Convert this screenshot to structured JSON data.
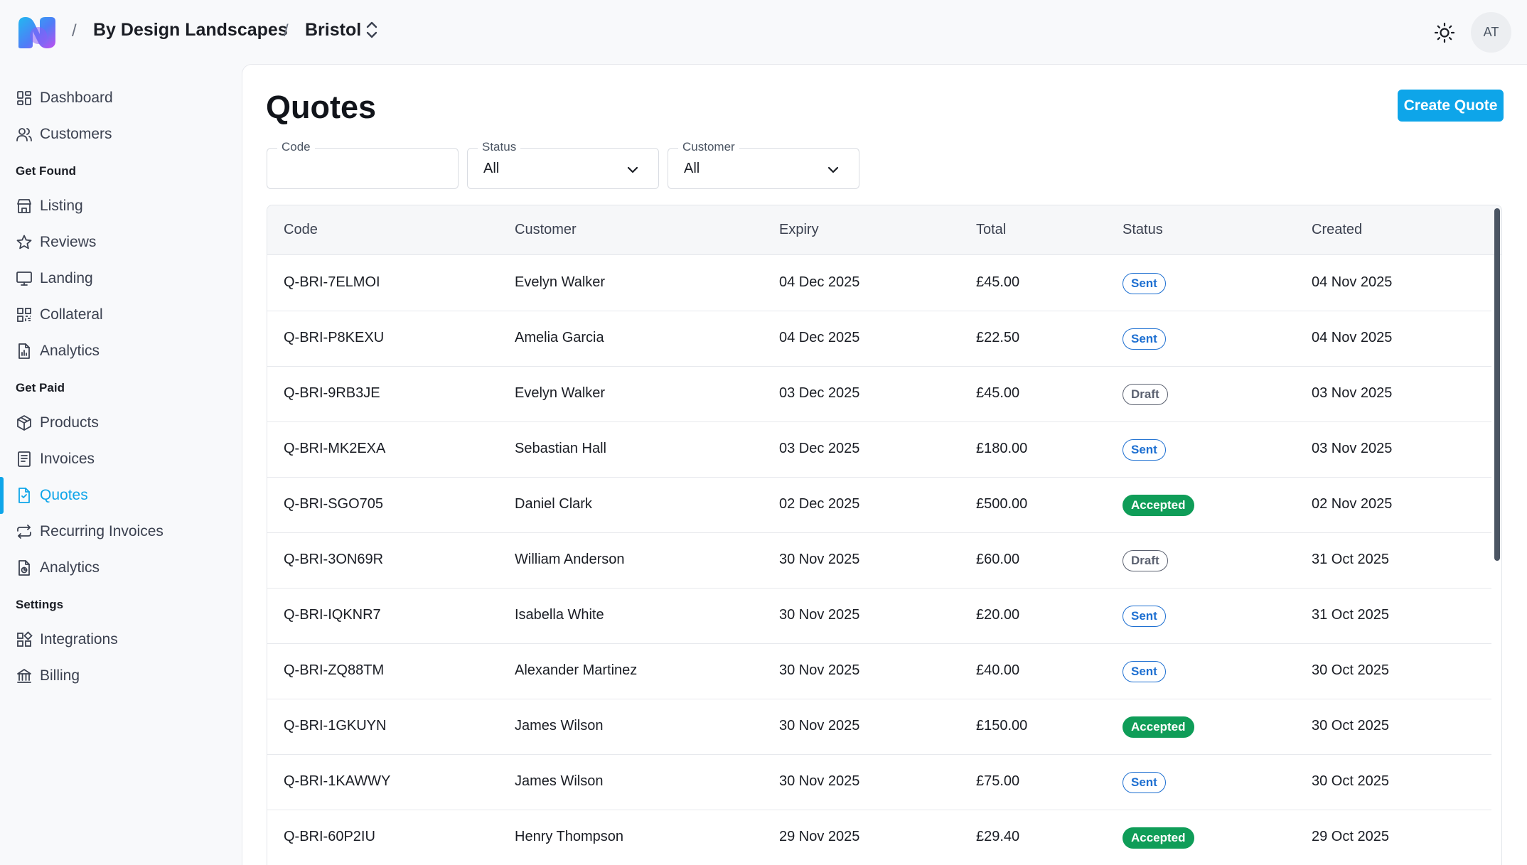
{
  "header": {
    "org_name": "By Design Landscapes",
    "location": "Bristol",
    "avatar_initials": "AT",
    "separator": "/"
  },
  "sidebar": {
    "items": [
      {
        "label": "Dashboard",
        "icon": "dashboard-icon"
      },
      {
        "label": "Customers",
        "icon": "users-icon"
      }
    ],
    "sections": [
      {
        "title": "Get Found",
        "items": [
          {
            "label": "Listing",
            "icon": "store-icon"
          },
          {
            "label": "Reviews",
            "icon": "star-icon"
          },
          {
            "label": "Landing",
            "icon": "monitor-icon"
          },
          {
            "label": "Collateral",
            "icon": "qr-icon"
          },
          {
            "label": "Analytics",
            "icon": "chart-file-icon"
          }
        ]
      },
      {
        "title": "Get Paid",
        "items": [
          {
            "label": "Products",
            "icon": "box-icon"
          },
          {
            "label": "Invoices",
            "icon": "invoice-icon"
          },
          {
            "label": "Quotes",
            "icon": "quote-file-icon",
            "active": true
          },
          {
            "label": "Recurring Invoices",
            "icon": "repeat-icon"
          },
          {
            "label": "Analytics",
            "icon": "analytics-icon"
          }
        ]
      },
      {
        "title": "Settings",
        "items": [
          {
            "label": "Integrations",
            "icon": "integrations-icon"
          },
          {
            "label": "Billing",
            "icon": "bank-icon"
          }
        ]
      }
    ]
  },
  "main": {
    "title": "Quotes",
    "create_label": "Create Quote",
    "filters": {
      "code": {
        "label": "Code",
        "value": ""
      },
      "status": {
        "label": "Status",
        "value": "All"
      },
      "customer": {
        "label": "Customer",
        "value": "All"
      }
    },
    "table": {
      "columns": [
        "Code",
        "Customer",
        "Expiry",
        "Total",
        "Status",
        "Created"
      ],
      "rows": [
        {
          "code": "Q-BRI-7ELMOI",
          "customer": "Evelyn Walker",
          "expiry": "04 Dec 2025",
          "total": "£45.00",
          "status": "Sent",
          "created": "04 Nov 2025"
        },
        {
          "code": "Q-BRI-P8KEXU",
          "customer": "Amelia Garcia",
          "expiry": "04 Dec 2025",
          "total": "£22.50",
          "status": "Sent",
          "created": "04 Nov 2025"
        },
        {
          "code": "Q-BRI-9RB3JE",
          "customer": "Evelyn Walker",
          "expiry": "03 Dec 2025",
          "total": "£45.00",
          "status": "Draft",
          "created": "03 Nov 2025"
        },
        {
          "code": "Q-BRI-MK2EXA",
          "customer": "Sebastian Hall",
          "expiry": "03 Dec 2025",
          "total": "£180.00",
          "status": "Sent",
          "created": "03 Nov 2025"
        },
        {
          "code": "Q-BRI-SGO705",
          "customer": "Daniel Clark",
          "expiry": "02 Dec 2025",
          "total": "£500.00",
          "status": "Accepted",
          "created": "02 Nov 2025"
        },
        {
          "code": "Q-BRI-3ON69R",
          "customer": "William Anderson",
          "expiry": "30 Nov 2025",
          "total": "£60.00",
          "status": "Draft",
          "created": "31 Oct 2025"
        },
        {
          "code": "Q-BRI-IQKNR7",
          "customer": "Isabella White",
          "expiry": "30 Nov 2025",
          "total": "£20.00",
          "status": "Sent",
          "created": "31 Oct 2025"
        },
        {
          "code": "Q-BRI-ZQ88TM",
          "customer": "Alexander Martinez",
          "expiry": "30 Nov 2025",
          "total": "£40.00",
          "status": "Sent",
          "created": "30 Oct 2025"
        },
        {
          "code": "Q-BRI-1GKUYN",
          "customer": "James Wilson",
          "expiry": "30 Nov 2025",
          "total": "£150.00",
          "status": "Accepted",
          "created": "30 Oct 2025"
        },
        {
          "code": "Q-BRI-1KAWWY",
          "customer": "James Wilson",
          "expiry": "30 Nov 2025",
          "total": "£75.00",
          "status": "Sent",
          "created": "30 Oct 2025"
        },
        {
          "code": "Q-BRI-60P2IU",
          "customer": "Henry Thompson",
          "expiry": "29 Nov 2025",
          "total": "£29.40",
          "status": "Accepted",
          "created": "29 Oct 2025"
        }
      ]
    }
  },
  "colors": {
    "accent": "#0ea5e9",
    "sent": "#1d6fd1",
    "draft": "#5b6170",
    "accepted": "#0f9d58"
  }
}
